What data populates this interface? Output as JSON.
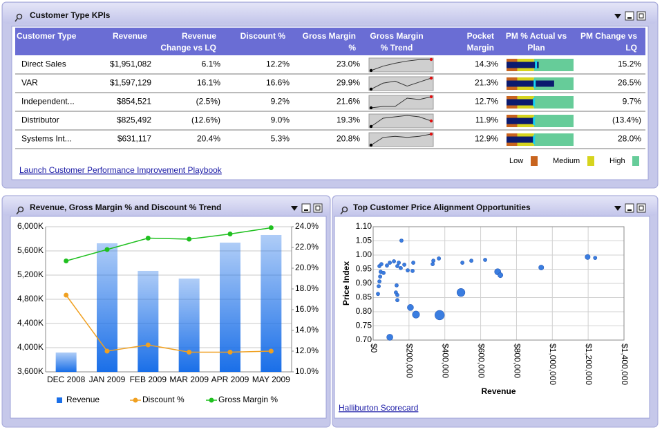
{
  "kpi": {
    "title": "Customer Type KPIs",
    "columns": [
      "Customer Type",
      "Revenue",
      "Revenue\nChange vs LQ",
      "Discount %",
      "Gross Margin\n%",
      "Gross Margin\n% Trend",
      "Pocket Margin\n%",
      "PM % Actual vs\nPlan",
      "PM Change vs\nLQ"
    ],
    "rows": [
      {
        "cells": [
          "Direct Sales",
          "$1,951,082",
          "6.1%",
          "12.2%",
          "23.0%",
          "14.3%",
          "15.2%"
        ],
        "trend": [
          0,
          3,
          5,
          6.5,
          7.5,
          7.6
        ],
        "pm_actual": 48,
        "pm_plan": 44
      },
      {
        "cells": [
          "VAR",
          "$1,597,129",
          "16.1%",
          "16.6%",
          "29.9%",
          "21.3%",
          "26.5%"
        ],
        "trend": [
          0,
          6,
          8,
          3,
          7,
          11
        ],
        "pm_actual": 71,
        "pm_plan": 42
      },
      {
        "cells": [
          "Independent...",
          "$854,521",
          "(2.5%)",
          "9.2%",
          "21.6%",
          "12.7%",
          "9.7%"
        ],
        "trend": [
          0,
          1,
          1,
          7,
          6,
          8
        ],
        "pm_actual": 40,
        "pm_plan": 41
      },
      {
        "cells": [
          "Distributor",
          "$825,492",
          "(12.6%)",
          "9.0%",
          "19.3%",
          "11.9%",
          "(13.4%)"
        ],
        "trend": [
          0,
          6,
          7,
          8,
          7,
          4
        ],
        "pm_actual": 40,
        "pm_plan": 41
      },
      {
        "cells": [
          "Systems Int...",
          "$631,117",
          "20.4%",
          "5.3%",
          "20.8%",
          "12.9%",
          "28.0%"
        ],
        "trend": [
          0,
          7,
          8,
          7,
          8,
          10
        ],
        "pm_actual": 40,
        "pm_plan": 41
      }
    ],
    "pm_range": [
      0,
      100
    ],
    "pm_bands": [
      {
        "label": "Low",
        "color": "#c8641e",
        "upper": 16
      },
      {
        "label": "Medium",
        "color": "#d6d41e",
        "upper": 41
      },
      {
        "label": "High",
        "color": "#66cc99",
        "upper": 100
      }
    ],
    "link": "Launch Customer Performance Improvement Playbook"
  },
  "chart_data": [
    {
      "type": "combo",
      "title": "Revenue, Gross Margin % and Discount % Trend",
      "categories": [
        "DEC 2008",
        "JAN 2009",
        "FEB 2009",
        "MAR 2009",
        "APR 2009",
        "MAY 2009"
      ],
      "series": [
        {
          "name": "Revenue",
          "type": "bar",
          "color": "#1a6fe8",
          "values": [
            3920,
            5726,
            5269,
            5143,
            5737,
            5863
          ]
        },
        {
          "name": "Discount %",
          "type": "line",
          "color": "#f0a020",
          "axis": "y2",
          "values": [
            17.4,
            12.0,
            12.6,
            11.9,
            11.9,
            12.0
          ]
        },
        {
          "name": "Gross Margin %",
          "type": "line",
          "color": "#1fc01f",
          "axis": "y2",
          "values": [
            20.7,
            21.8,
            22.9,
            22.8,
            23.3,
            23.9
          ]
        }
      ],
      "ylim": [
        3600,
        6000
      ],
      "yticks": [
        {
          "value": 3600,
          "label": "3,600K"
        },
        {
          "value": 4000,
          "label": "4,000K"
        },
        {
          "value": 4400,
          "label": "4,400K"
        },
        {
          "value": 4800,
          "label": "4,800K"
        },
        {
          "value": 5200,
          "label": "5,200K"
        },
        {
          "value": 5600,
          "label": "5,600K"
        },
        {
          "value": 6000,
          "label": "6,000K"
        }
      ],
      "y2lim": [
        10,
        24
      ],
      "y2ticks": [
        {
          "value": 10,
          "label": "10.0%"
        },
        {
          "value": 12,
          "label": "12.0%"
        },
        {
          "value": 14,
          "label": "14.0%"
        },
        {
          "value": 16,
          "label": "16.0%"
        },
        {
          "value": 18,
          "label": "18.0%"
        },
        {
          "value": 20,
          "label": "20.0%"
        },
        {
          "value": 22,
          "label": "22.0%"
        },
        {
          "value": 24,
          "label": "24.0%"
        }
      ],
      "grid": true
    },
    {
      "type": "scatter",
      "title": "Top Customer Price Alignment Opportunities",
      "x_label": "Revenue",
      "y_label": "Price Index",
      "color": "#3a7de0",
      "x": [
        27000,
        31000,
        35000,
        39000,
        42000,
        35000,
        46000,
        58000,
        77000,
        93000,
        116000,
        135000,
        143000,
        158000,
        154000,
        174000,
        193000,
        220000,
        224000,
        332000,
        336000,
        367000,
        131000,
        127000,
        135000,
        135000,
        208000,
        239000,
        93000,
        371000,
        490000,
        498000,
        548000,
        625000,
        695000,
        710000,
        938000,
        1197000,
        1239000
      ],
      "values": [
        0.863,
        0.89,
        0.907,
        0.924,
        0.941,
        0.961,
        0.968,
        0.937,
        0.963,
        0.973,
        0.978,
        0.961,
        0.973,
        1.051,
        0.954,
        0.966,
        0.946,
        0.944,
        0.973,
        0.968,
        0.98,
        0.988,
        0.893,
        0.868,
        0.841,
        0.859,
        0.815,
        0.79,
        0.71,
        0.788,
        0.868,
        0.973,
        0.98,
        0.983,
        0.941,
        0.929,
        0.956,
        0.993,
        0.99
      ],
      "sizes": [
        1,
        1,
        1,
        1,
        1,
        1,
        1,
        1,
        1,
        1,
        1,
        1,
        1,
        1,
        1,
        1,
        1,
        1,
        1,
        1,
        1,
        1,
        1,
        1,
        1,
        1,
        3,
        4,
        3,
        7,
        5,
        1,
        1,
        1,
        3,
        2,
        2,
        2,
        1
      ],
      "xlim": [
        0,
        1400000
      ],
      "xticks": [
        {
          "value": 0,
          "label": "$0"
        },
        {
          "value": 200000,
          "label": "$200,000"
        },
        {
          "value": 400000,
          "label": "$400,000"
        },
        {
          "value": 600000,
          "label": "$600,000"
        },
        {
          "value": 800000,
          "label": "$800,000"
        },
        {
          "value": 1000000,
          "label": "$1,000,000"
        },
        {
          "value": 1200000,
          "label": "$1,200,000"
        },
        {
          "value": 1400000,
          "label": "$1,400,000"
        }
      ],
      "ylim": [
        0.7,
        1.1
      ],
      "yticks": [
        {
          "value": 0.7,
          "label": "0.70"
        },
        {
          "value": 0.75,
          "label": "0.75"
        },
        {
          "value": 0.8,
          "label": "0.80"
        },
        {
          "value": 0.85,
          "label": "0.85"
        },
        {
          "value": 0.9,
          "label": "0.90"
        },
        {
          "value": 0.95,
          "label": "0.95"
        },
        {
          "value": 1.0,
          "label": "1.00"
        },
        {
          "value": 1.05,
          "label": "1.05"
        },
        {
          "value": 1.1,
          "label": "1.10"
        }
      ],
      "grid": true,
      "link": "Halliburton Scorecard"
    }
  ]
}
